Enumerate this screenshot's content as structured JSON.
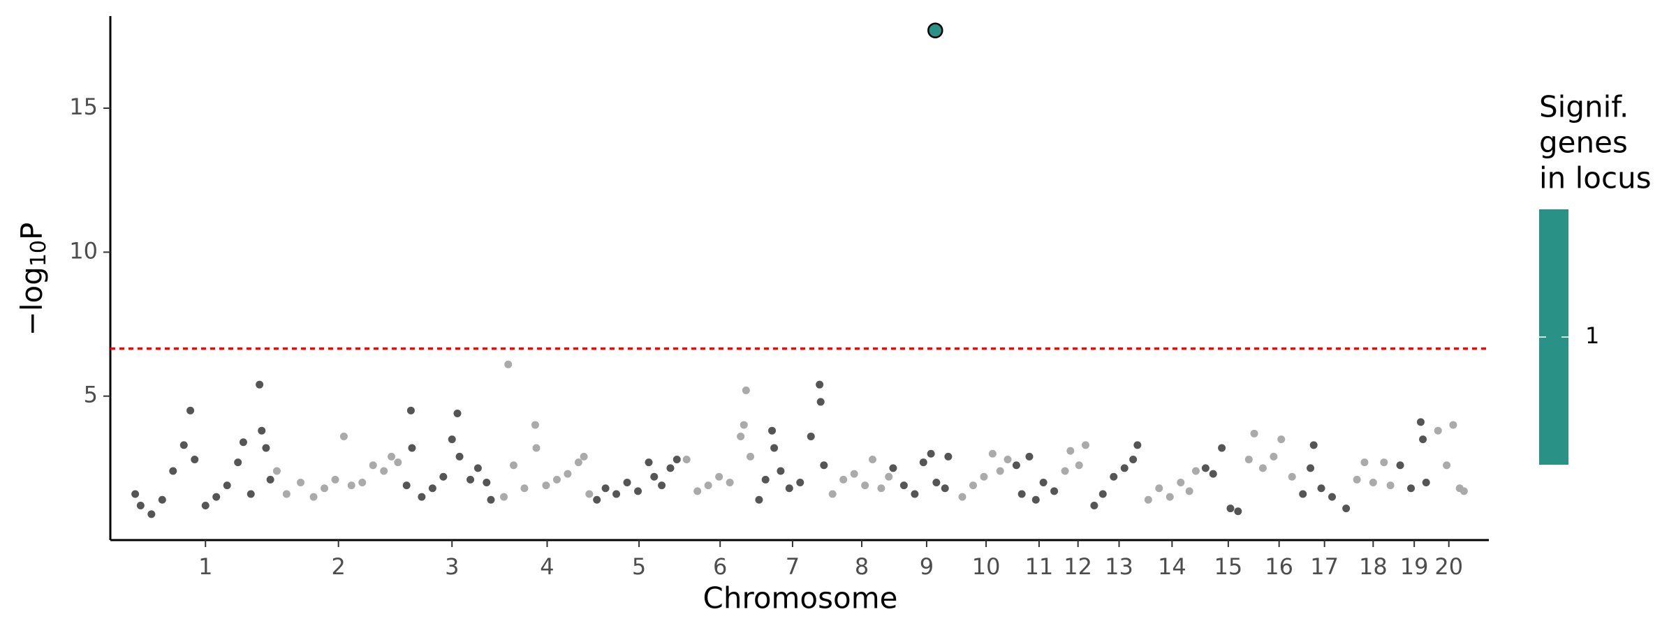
{
  "chart_data": {
    "type": "scatter",
    "xlabel": "Chromosome",
    "ylabel": [
      "−log",
      "10",
      "P"
    ],
    "xlim": [
      0,
      2550
    ],
    "ylim": [
      0,
      18.2
    ],
    "yticks": [
      5,
      10,
      15
    ],
    "xticks": [
      {
        "value": 176,
        "label": "1"
      },
      {
        "value": 422,
        "label": "2"
      },
      {
        "value": 632,
        "label": "3"
      },
      {
        "value": 808,
        "label": "4"
      },
      {
        "value": 978,
        "label": "5"
      },
      {
        "value": 1128,
        "label": "6"
      },
      {
        "value": 1262,
        "label": "7"
      },
      {
        "value": 1390,
        "label": "8"
      },
      {
        "value": 1510,
        "label": "9"
      },
      {
        "value": 1620,
        "label": "10"
      },
      {
        "value": 1718,
        "label": "11"
      },
      {
        "value": 1790,
        "label": "12"
      },
      {
        "value": 1866,
        "label": "13"
      },
      {
        "value": 1964,
        "label": "14"
      },
      {
        "value": 2068,
        "label": "15"
      },
      {
        "value": 2162,
        "label": "16"
      },
      {
        "value": 2246,
        "label": "17"
      },
      {
        "value": 2336,
        "label": "18"
      },
      {
        "value": 2412,
        "label": "19"
      },
      {
        "value": 2476,
        "label": "20"
      }
    ],
    "threshold": {
      "value": 6.65,
      "color": "#ff0000"
    },
    "series": [
      {
        "color": "#555555",
        "x": [
          46,
          56,
          76,
          96,
          116,
          136,
          148,
          156,
          176,
          196,
          216,
          236,
          246,
          260,
          276,
          280,
          288,
          296
        ],
        "values": [
          1.6,
          1.2,
          0.9,
          1.4,
          2.4,
          3.3,
          4.5,
          2.8,
          1.2,
          1.5,
          1.9,
          2.7,
          3.4,
          1.6,
          5.4,
          3.8,
          3.2,
          2.1
        ]
      },
      {
        "color": "#aaaaaa",
        "x": [
          308,
          326,
          352,
          376,
          396,
          416,
          432,
          446,
          466,
          486,
          506,
          520,
          532
        ],
        "values": [
          2.4,
          1.6,
          2.0,
          1.5,
          1.8,
          2.1,
          3.6,
          1.9,
          2.0,
          2.6,
          2.4,
          2.9,
          2.7
        ]
      },
      {
        "color": "#555555",
        "x": [
          548,
          556,
          558,
          576,
          596,
          616,
          632,
          642,
          646,
          666,
          680,
          696,
          704
        ],
        "values": [
          1.9,
          4.5,
          3.2,
          1.5,
          1.8,
          2.2,
          3.5,
          4.4,
          2.9,
          2.1,
          2.5,
          2.0,
          1.4
        ]
      },
      {
        "color": "#aaaaaa",
        "x": [
          728,
          736,
          746,
          766,
          786,
          788,
          806,
          826,
          846,
          866,
          876,
          886
        ],
        "values": [
          1.5,
          6.1,
          2.6,
          1.8,
          4.0,
          3.2,
          1.9,
          2.1,
          2.3,
          2.7,
          2.9,
          1.6
        ]
      },
      {
        "color": "#555555",
        "x": [
          900,
          916,
          936,
          956,
          976,
          996,
          1006,
          1020,
          1036,
          1048
        ],
        "values": [
          1.4,
          1.8,
          1.6,
          2.0,
          1.7,
          2.7,
          2.2,
          1.9,
          2.5,
          2.8
        ]
      },
      {
        "color": "#aaaaaa",
        "x": [
          1066,
          1086,
          1106,
          1126,
          1146,
          1166,
          1172,
          1176,
          1184
        ],
        "values": [
          2.8,
          1.7,
          1.9,
          2.2,
          2.0,
          3.6,
          4.0,
          5.2,
          2.9
        ]
      },
      {
        "color": "#555555",
        "x": [
          1200,
          1212,
          1224,
          1228,
          1240,
          1256,
          1276,
          1296,
          1312,
          1314,
          1320
        ],
        "values": [
          1.4,
          2.1,
          3.8,
          3.2,
          2.4,
          1.8,
          2.0,
          3.6,
          5.4,
          4.8,
          2.6
        ]
      },
      {
        "color": "#aaaaaa",
        "x": [
          1336,
          1356,
          1376,
          1396,
          1410,
          1426,
          1440
        ],
        "values": [
          1.6,
          2.1,
          2.3,
          1.9,
          2.8,
          1.8,
          2.2
        ]
      },
      {
        "color": "#555555",
        "x": [
          1448,
          1468,
          1488,
          1504,
          1518,
          1528,
          1544,
          1550
        ],
        "values": [
          2.5,
          1.9,
          1.6,
          2.7,
          3.0,
          2.0,
          1.8,
          2.9
        ]
      },
      {
        "color": "#aaaaaa",
        "x": [
          1576,
          1596,
          1616,
          1632,
          1646,
          1660
        ],
        "values": [
          1.5,
          1.9,
          2.2,
          3.0,
          2.4,
          2.8
        ]
      },
      {
        "color": "#555555",
        "x": [
          1676,
          1686,
          1700,
          1712,
          1726,
          1746
        ],
        "values": [
          2.6,
          1.6,
          2.9,
          1.4,
          2.0,
          1.7
        ]
      },
      {
        "color": "#aaaaaa",
        "x": [
          1766,
          1776,
          1792,
          1804
        ],
        "values": [
          2.4,
          3.1,
          2.6,
          3.3
        ]
      },
      {
        "color": "#555555",
        "x": [
          1820,
          1836,
          1856,
          1876,
          1892,
          1900
        ],
        "values": [
          1.2,
          1.6,
          2.2,
          2.5,
          2.8,
          3.3
        ]
      },
      {
        "color": "#aaaaaa",
        "x": [
          1920,
          1940,
          1960,
          1980,
          1996,
          2008
        ],
        "values": [
          1.4,
          1.8,
          1.5,
          2.0,
          1.7,
          2.4
        ]
      },
      {
        "color": "#555555",
        "x": [
          2026,
          2040,
          2056,
          2072,
          2086
        ],
        "values": [
          2.5,
          2.3,
          3.2,
          1.1,
          1.0
        ]
      },
      {
        "color": "#aaaaaa",
        "x": [
          2106,
          2116,
          2132,
          2152,
          2166,
          2186
        ],
        "values": [
          2.8,
          3.7,
          2.5,
          2.9,
          3.5,
          2.2
        ]
      },
      {
        "color": "#555555",
        "x": [
          2206,
          2220,
          2226,
          2240,
          2260,
          2286
        ],
        "values": [
          1.6,
          2.5,
          3.3,
          1.8,
          1.5,
          1.1
        ]
      },
      {
        "color": "#aaaaaa",
        "x": [
          2306,
          2320,
          2336,
          2356,
          2368
        ],
        "values": [
          2.1,
          2.7,
          2.0,
          2.7,
          1.9
        ]
      },
      {
        "color": "#555555",
        "x": [
          2386,
          2406,
          2424,
          2428,
          2434
        ],
        "values": [
          2.6,
          1.8,
          4.1,
          3.5,
          2.0
        ]
      },
      {
        "color": "#aaaaaa",
        "x": [
          2456,
          2472,
          2484,
          2496,
          2504
        ],
        "values": [
          3.8,
          2.6,
          4.0,
          1.8,
          1.7
        ]
      }
    ],
    "highlight": {
      "x": 1526,
      "value": 17.7,
      "color": "#2a9187"
    },
    "legend": {
      "title": [
        "Signif.",
        "genes",
        "in locus"
      ],
      "ticks": [
        1
      ],
      "color": "#2a9187"
    }
  }
}
